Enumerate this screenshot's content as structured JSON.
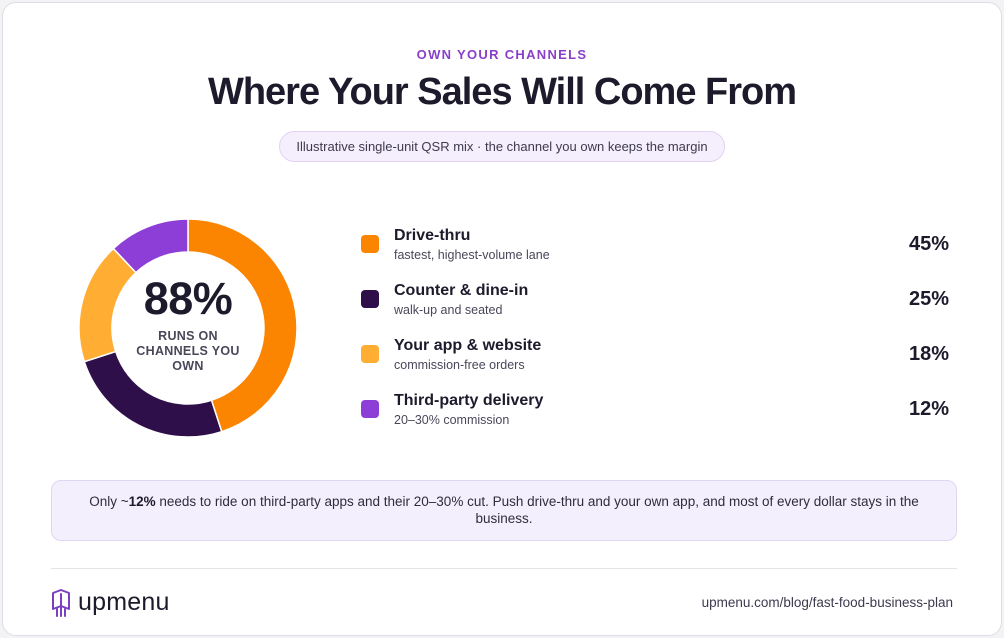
{
  "header": {
    "eyebrow": "OWN YOUR CHANNELS",
    "title": "Where Your Sales Will Come From",
    "subtitle": "Illustrative single-unit QSR mix · the channel you own keeps the margin"
  },
  "center": {
    "value": "88%",
    "label": "RUNS ON CHANNELS YOU OWN"
  },
  "legend": [
    {
      "name": "Drive-thru",
      "desc": "fastest, highest-volume lane",
      "pct": "45%"
    },
    {
      "name": "Counter & dine-in",
      "desc": "walk-up and seated",
      "pct": "25%"
    },
    {
      "name": "Your app & website",
      "desc": "commission-free orders",
      "pct": "18%"
    },
    {
      "name": "Third-party delivery",
      "desc": "20–30% commission",
      "pct": "12%"
    }
  ],
  "chart_data": {
    "type": "pie",
    "variant": "donut",
    "categories": [
      "Drive-thru",
      "Counter & dine-in",
      "Your app & website",
      "Third-party delivery"
    ],
    "values": [
      45,
      25,
      18,
      12
    ],
    "colors": [
      "#fb8500",
      "#2e0f4a",
      "#ffae33",
      "#8d3ed6"
    ],
    "center_value": "88%",
    "center_label": "RUNS ON CHANNELS YOU OWN"
  },
  "note": {
    "before": "Only ~",
    "bold": "12%",
    "after": " needs to ride on third-party apps and their 20–30% cut. Push drive-thru and your own app, and most of every dollar stays in the business."
  },
  "footer": {
    "logo_text": "upmenu",
    "url": "upmenu.com/blog/fast-food-business-plan"
  },
  "colors": {
    "accent": "#8a3fc9",
    "ink": "#1c1a2b"
  }
}
